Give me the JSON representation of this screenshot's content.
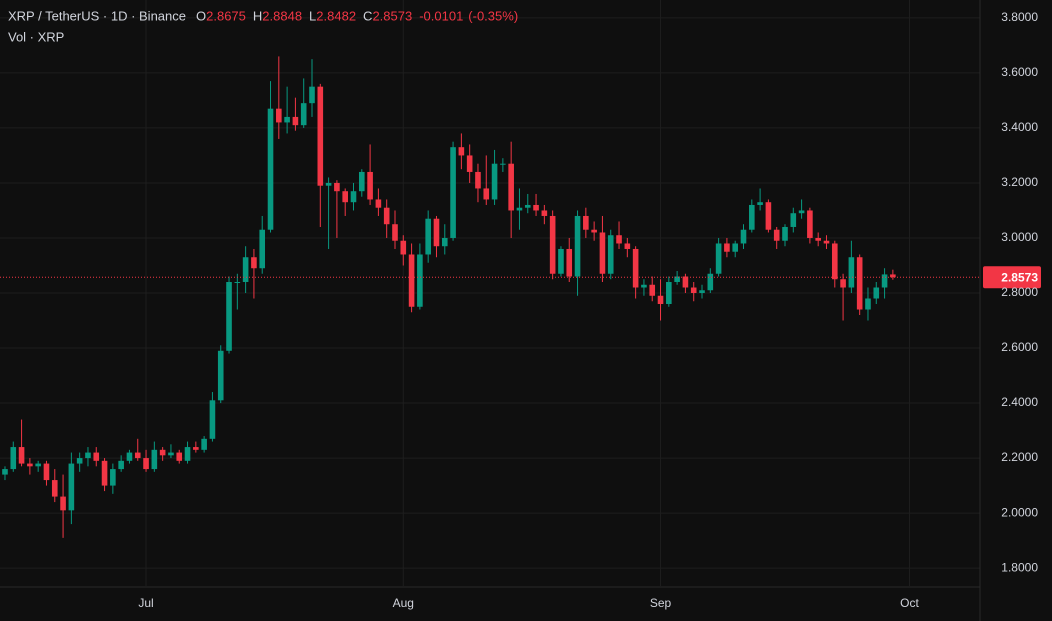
{
  "chart_data": {
    "type": "candlestick",
    "title": "XRP / TetherUS · 1D · Binance",
    "subtitle": "Vol · XRP",
    "legend": [
      {
        "label": "O",
        "value": 2.8675
      },
      {
        "label": "H",
        "value": 2.8848
      },
      {
        "label": "L",
        "value": 2.8482
      },
      {
        "label": "C",
        "value": 2.8573
      }
    ],
    "change": -0.0101,
    "change_percent": {
      "value": -0.35,
      "label": "(-0.35%)"
    },
    "last_price": 2.8573,
    "up_color": "#089981",
    "down_color": "#f23645",
    "grid": true,
    "xlim": [
      -0.6,
      117.5
    ],
    "xticks": [
      {
        "value": 17,
        "label": "Jul"
      },
      {
        "value": 48,
        "label": "Aug"
      },
      {
        "value": 79,
        "label": "Sep"
      },
      {
        "value": 109,
        "label": "Oct"
      }
    ],
    "ylim": [
      1.735,
      3.865
    ],
    "yticks": [
      {
        "value": 1.8,
        "label": "1.8000"
      },
      {
        "value": 2.0,
        "label": "2.0000"
      },
      {
        "value": 2.2,
        "label": "2.2000"
      },
      {
        "value": 2.4,
        "label": "2.4000"
      },
      {
        "value": 2.6,
        "label": "2.6000"
      },
      {
        "value": 2.8,
        "label": "2.8000"
      },
      {
        "value": 3.0,
        "label": "3.0000"
      },
      {
        "value": 3.2,
        "label": "3.2000"
      },
      {
        "value": 3.4,
        "label": "3.4000"
      },
      {
        "value": 3.6,
        "label": "3.6000"
      },
      {
        "value": 3.8,
        "label": "3.8000"
      }
    ],
    "series": {
      "open": [
        2.14,
        2.16,
        2.24,
        2.18,
        2.17,
        2.18,
        2.12,
        2.06,
        2.01,
        2.18,
        2.2,
        2.22,
        2.19,
        2.1,
        2.16,
        2.19,
        2.22,
        2.2,
        2.16,
        2.23,
        2.21,
        2.22,
        2.19,
        2.24,
        2.23,
        2.27,
        2.41,
        2.59,
        2.84,
        2.84,
        2.93,
        2.89,
        3.03,
        3.47,
        3.42,
        3.44,
        3.41,
        3.49,
        3.55,
        3.19,
        3.2,
        3.17,
        3.13,
        3.17,
        3.24,
        3.14,
        3.11,
        3.05,
        2.99,
        2.94,
        2.75,
        2.94,
        3.07,
        2.97,
        3.0,
        3.33,
        3.3,
        3.24,
        3.18,
        3.14,
        3.27,
        3.27,
        3.1,
        3.11,
        3.12,
        3.1,
        3.08,
        2.87,
        2.96,
        2.86,
        3.08,
        3.03,
        3.02,
        2.87,
        3.01,
        2.98,
        2.96,
        2.82,
        2.83,
        2.79,
        2.76,
        2.84,
        2.86,
        2.82,
        2.8,
        2.81,
        2.87,
        2.98,
        2.95,
        2.98,
        3.03,
        3.12,
        3.13,
        3.03,
        2.99,
        3.04,
        3.09,
        3.1,
        3.0,
        2.99,
        2.98,
        2.85,
        2.82,
        2.93,
        2.74,
        2.78,
        2.82,
        2.8675
      ],
      "high": [
        2.17,
        2.26,
        2.34,
        2.2,
        2.19,
        2.19,
        2.16,
        2.14,
        2.22,
        2.22,
        2.24,
        2.24,
        2.2,
        2.18,
        2.21,
        2.23,
        2.27,
        2.23,
        2.26,
        2.24,
        2.25,
        2.23,
        2.26,
        2.26,
        2.28,
        2.44,
        2.61,
        2.86,
        2.87,
        2.97,
        2.96,
        3.08,
        3.57,
        3.66,
        3.55,
        3.51,
        3.58,
        3.65,
        3.56,
        3.22,
        3.21,
        3.18,
        3.2,
        3.25,
        3.34,
        3.18,
        3.14,
        3.1,
        3.01,
        2.98,
        2.98,
        3.1,
        3.08,
        3.05,
        3.35,
        3.38,
        3.34,
        3.27,
        3.3,
        3.32,
        3.29,
        3.35,
        3.18,
        3.16,
        3.16,
        3.12,
        3.1,
        2.97,
        3.0,
        3.1,
        3.11,
        3.06,
        3.08,
        3.03,
        3.06,
        3.0,
        2.97,
        2.85,
        2.86,
        2.85,
        2.86,
        2.88,
        2.87,
        2.84,
        2.83,
        2.89,
        3.0,
        3.0,
        2.99,
        3.05,
        3.14,
        3.18,
        3.14,
        3.04,
        3.05,
        3.11,
        3.14,
        3.11,
        3.02,
        3.01,
        2.99,
        2.87,
        2.99,
        2.94,
        2.82,
        2.84,
        2.89,
        2.8848
      ],
      "low": [
        2.12,
        2.15,
        2.17,
        2.14,
        2.15,
        2.1,
        2.04,
        1.91,
        1.96,
        2.15,
        2.17,
        2.17,
        2.08,
        2.07,
        2.15,
        2.18,
        2.19,
        2.15,
        2.15,
        2.19,
        2.2,
        2.18,
        2.18,
        2.22,
        2.22,
        2.26,
        2.4,
        2.58,
        2.74,
        2.8,
        2.78,
        2.87,
        3.02,
        3.36,
        3.38,
        3.39,
        3.4,
        3.44,
        3.04,
        2.96,
        3.0,
        3.08,
        3.1,
        3.15,
        3.12,
        3.08,
        3.0,
        2.96,
        2.9,
        2.73,
        2.74,
        2.91,
        2.93,
        2.94,
        2.99,
        3.25,
        3.2,
        3.13,
        3.12,
        3.12,
        3.24,
        3.0,
        3.03,
        3.09,
        3.08,
        3.05,
        2.85,
        2.86,
        2.84,
        2.79,
        3.0,
        2.99,
        2.84,
        2.85,
        2.96,
        2.93,
        2.78,
        2.79,
        2.77,
        2.7,
        2.75,
        2.83,
        2.8,
        2.77,
        2.78,
        2.8,
        2.86,
        2.93,
        2.93,
        2.96,
        3.02,
        3.1,
        3.02,
        2.96,
        2.97,
        3.02,
        3.07,
        2.98,
        2.97,
        2.96,
        2.82,
        2.7,
        2.8,
        2.72,
        2.7,
        2.76,
        2.78,
        2.8482
      ],
      "close": [
        2.16,
        2.24,
        2.18,
        2.17,
        2.18,
        2.12,
        2.06,
        2.01,
        2.18,
        2.2,
        2.22,
        2.19,
        2.1,
        2.16,
        2.19,
        2.22,
        2.2,
        2.16,
        2.23,
        2.21,
        2.22,
        2.19,
        2.24,
        2.23,
        2.27,
        2.41,
        2.59,
        2.84,
        2.84,
        2.93,
        2.89,
        3.03,
        3.47,
        3.42,
        3.44,
        3.41,
        3.49,
        3.55,
        3.19,
        3.2,
        3.17,
        3.13,
        3.17,
        3.24,
        3.14,
        3.11,
        3.05,
        2.99,
        2.94,
        2.75,
        2.94,
        3.07,
        2.97,
        3.0,
        3.33,
        3.3,
        3.24,
        3.18,
        3.14,
        3.27,
        3.27,
        3.1,
        3.11,
        3.12,
        3.1,
        3.08,
        2.87,
        2.96,
        2.86,
        3.08,
        3.03,
        3.02,
        2.87,
        3.01,
        2.98,
        2.96,
        2.82,
        2.83,
        2.79,
        2.76,
        2.84,
        2.86,
        2.82,
        2.8,
        2.81,
        2.87,
        2.98,
        2.95,
        2.98,
        3.03,
        3.12,
        3.13,
        3.03,
        2.99,
        3.04,
        3.09,
        3.1,
        3.0,
        2.99,
        2.98,
        2.85,
        2.82,
        2.93,
        2.74,
        2.78,
        2.82,
        2.8675,
        2.8573
      ]
    }
  }
}
